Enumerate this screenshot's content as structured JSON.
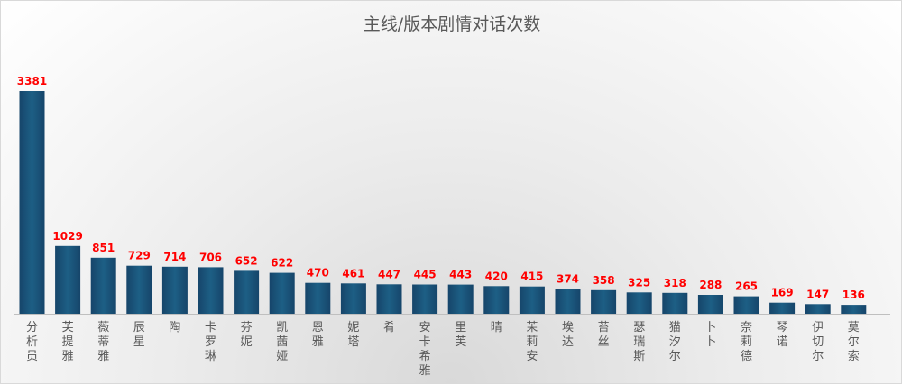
{
  "chart_data": {
    "type": "bar",
    "title": "主线/版本剧情对话次数",
    "xlabel": "",
    "ylabel": "",
    "ylim": [
      0,
      3381
    ],
    "grid": false,
    "categories": [
      "分析员",
      "芙提雅",
      "薇蒂雅",
      "辰星",
      "陶",
      "卡罗琳",
      "芬妮",
      "凯茜娅",
      "恩雅",
      "妮塔",
      "肴",
      "安卡希雅",
      "里芙",
      "晴",
      "茉莉安",
      "埃达",
      "苔丝",
      "瑟瑞斯",
      "猫汐尔",
      "卜卜",
      "奈莉德",
      "琴诺",
      "伊切尔",
      "莫尔索"
    ],
    "values": [
      3381,
      1029,
      851,
      729,
      714,
      706,
      652,
      622,
      470,
      461,
      447,
      445,
      443,
      420,
      415,
      374,
      358,
      325,
      318,
      288,
      265,
      169,
      147,
      136
    ],
    "colors": {
      "bar_top": "#1d5f85",
      "bar_bottom": "#16456a",
      "value_label": "#ff0000",
      "category_label": "#595959",
      "title": "#595959"
    }
  }
}
